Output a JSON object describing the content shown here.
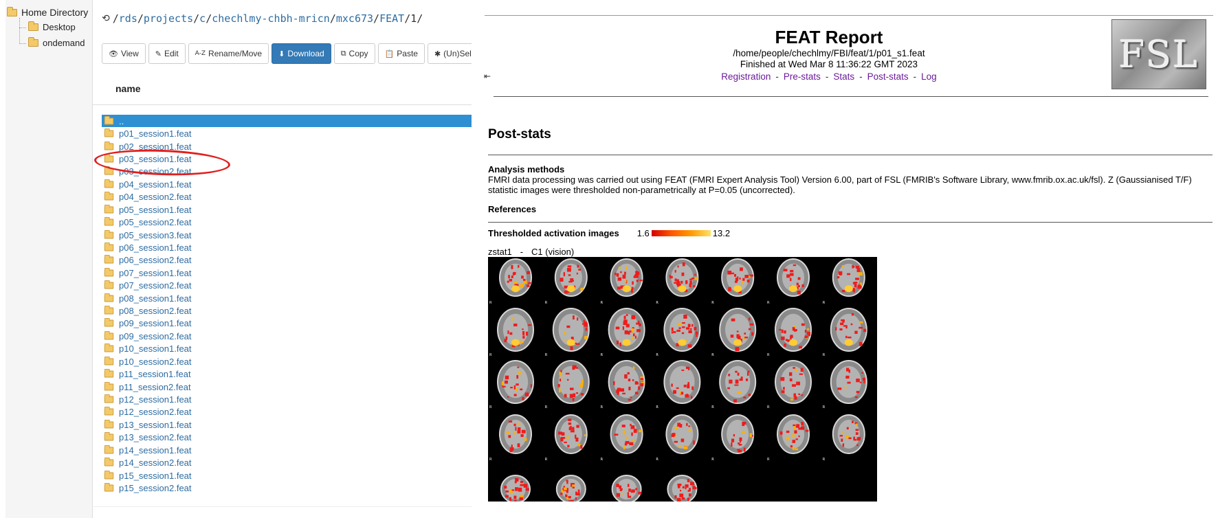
{
  "tree": {
    "root_label": "Home Directory",
    "children": [
      "Desktop",
      "ondemand"
    ]
  },
  "path": {
    "segments": [
      "rds",
      "projects",
      "c",
      "chechlmy-chbh-mricn",
      "mxc673",
      "FEAT"
    ],
    "last": "1",
    "separator": "/"
  },
  "toolbar": {
    "buttons": [
      {
        "icon": "eye-icon",
        "glyph": "👁",
        "label": "View"
      },
      {
        "icon": "edit-icon",
        "glyph": "✎",
        "label": "Edit"
      },
      {
        "icon": "sort-az-icon",
        "glyph": "A-Z",
        "label": "Rename/Move"
      },
      {
        "icon": "download-icon",
        "glyph": "⬇",
        "label": "Download"
      },
      {
        "icon": "copy-icon",
        "glyph": "⧉",
        "label": "Copy"
      },
      {
        "icon": "paste-icon",
        "glyph": "📋",
        "label": "Paste"
      },
      {
        "icon": "asterisk-icon",
        "glyph": "✱",
        "label": "(Un)Select All"
      }
    ]
  },
  "file_list": {
    "column_header": "name",
    "rows": [
      "..",
      "p01_session1.feat",
      "p02_session1.feat",
      "p03_session1.feat",
      "p03_session2.feat",
      "p04_session1.feat",
      "p04_session2.feat",
      "p05_session1.feat",
      "p05_session2.feat",
      "p05_session3.feat",
      "p06_session1.feat",
      "p06_session2.feat",
      "p07_session1.feat",
      "p07_session2.feat",
      "p08_session1.feat",
      "p08_session2.feat",
      "p09_session1.feat",
      "p09_session2.feat",
      "p10_session1.feat",
      "p10_session2.feat",
      "p11_session1.feat",
      "p11_session2.feat",
      "p12_session1.feat",
      "p12_session2.feat",
      "p13_session1.feat",
      "p13_session2.feat",
      "p14_session1.feat",
      "p14_session2.feat",
      "p15_session1.feat",
      "p15_session2.feat"
    ],
    "selected_index": 0,
    "highlighted": "p03_session1.feat"
  },
  "report": {
    "title": "FEAT Report",
    "path": "/home/people/chechlmy/FBI/feat/1/p01_s1.feat",
    "finished": "Finished at Wed Mar 8 11:36:22 GMT 2023",
    "nav": [
      "Registration",
      "Pre-stats",
      "Stats",
      "Post-stats",
      "Log"
    ],
    "nav_separator": "-",
    "logo_text": "FSL",
    "section_title": "Post-stats",
    "methods_title": "Analysis methods",
    "methods_text": "FMRI data processing was carried out using FEAT (FMRI Expert Analysis Tool) Version 6.00, part of FSL (FMRIB's Software Library, www.fmrib.ox.ac.uk/fsl). Z (Gaussianised T/F) statistic images were thresholded non-parametrically at P=0.05 (uncorrected).",
    "references_title": "References",
    "thresholded_title": "Thresholded activation images",
    "colorbar_min": "1.6",
    "colorbar_max": "13.2",
    "zstat_name": "zstat1",
    "zstat_dash": "-",
    "zstat_contrast": "C1 (vision)",
    "slice_label": "R"
  },
  "colors": {
    "link": "#2d6ca2",
    "selected_row": "#2f8fd3",
    "primary_button": "#337ab7",
    "nav_link": "#6a1b9a",
    "annotation": "#e02020"
  }
}
